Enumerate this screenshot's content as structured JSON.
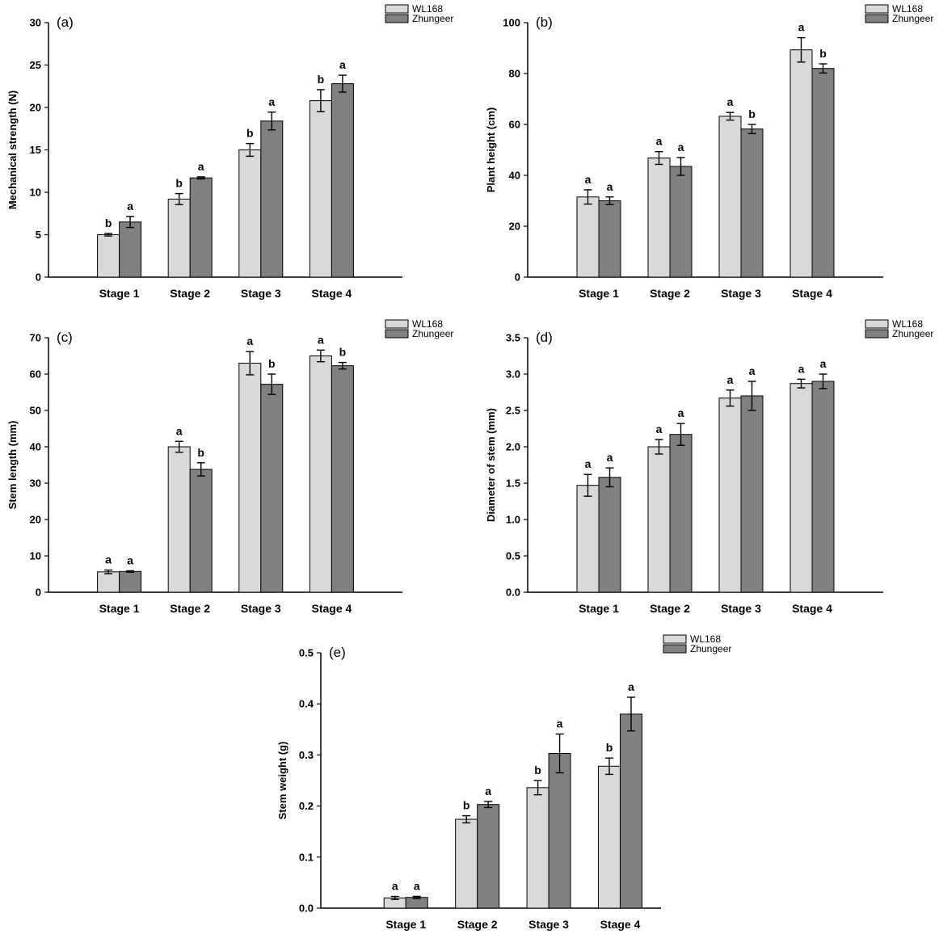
{
  "colors": {
    "wl168": "#d9d9d9",
    "zhungeer": "#808080",
    "axis": "#000000"
  },
  "chart_data": [
    {
      "id": "a",
      "panel_label": "(a)",
      "type": "bar",
      "ylabel": "Mechanical strength (N)",
      "categories": [
        "Stage 1",
        "Stage 2",
        "Stage 3",
        "Stage 4"
      ],
      "ylim": [
        0,
        30
      ],
      "yticks": [
        "0",
        "5",
        "10",
        "15",
        "20",
        "25",
        "30"
      ],
      "series": [
        {
          "name": "WL168",
          "values": [
            5.0,
            9.2,
            15.0,
            20.8
          ],
          "errors": [
            0.15,
            0.65,
            0.75,
            1.3
          ],
          "letters": [
            "b",
            "b",
            "b",
            "b"
          ]
        },
        {
          "name": "Zhungeer",
          "values": [
            6.5,
            11.7,
            18.4,
            22.8
          ],
          "errors": [
            0.65,
            0.12,
            1.05,
            1.0
          ],
          "letters": [
            "a",
            "a",
            "a",
            "a"
          ]
        }
      ]
    },
    {
      "id": "b",
      "panel_label": "(b)",
      "type": "bar",
      "ylabel": "Plant height (cm)",
      "categories": [
        "Stage 1",
        "Stage 2",
        "Stage 3",
        "Stage 4"
      ],
      "ylim": [
        0,
        100
      ],
      "yticks": [
        "0",
        "20",
        "40",
        "60",
        "80",
        "100"
      ],
      "series": [
        {
          "name": "WL168",
          "values": [
            31.5,
            46.8,
            63.2,
            89.3
          ],
          "errors": [
            2.8,
            2.5,
            1.5,
            4.8
          ],
          "letters": [
            "a",
            "a",
            "a",
            "a"
          ]
        },
        {
          "name": "Zhungeer",
          "values": [
            30.0,
            43.5,
            58.2,
            82.0
          ],
          "errors": [
            1.5,
            3.5,
            1.8,
            1.8
          ],
          "letters": [
            "a",
            "a",
            "b",
            "b"
          ]
        }
      ]
    },
    {
      "id": "c",
      "panel_label": "(c)",
      "type": "bar",
      "ylabel": "Stem length (mm)",
      "categories": [
        "Stage 1",
        "Stage 2",
        "Stage 3",
        "Stage 4"
      ],
      "ylim": [
        0,
        70
      ],
      "yticks": [
        "0",
        "10",
        "20",
        "30",
        "40",
        "50",
        "60",
        "70"
      ],
      "series": [
        {
          "name": "WL168",
          "values": [
            5.6,
            40.0,
            63.0,
            65.0
          ],
          "errors": [
            0.5,
            1.5,
            3.2,
            1.6
          ],
          "letters": [
            "a",
            "a",
            "a",
            "a"
          ]
        },
        {
          "name": "Zhungeer",
          "values": [
            5.7,
            33.8,
            57.2,
            62.3
          ],
          "errors": [
            0.2,
            1.8,
            2.8,
            0.9
          ],
          "letters": [
            "a",
            "b",
            "b",
            "b"
          ]
        }
      ]
    },
    {
      "id": "d",
      "panel_label": "(d)",
      "type": "bar",
      "ylabel": "Diameter of stem (mm)",
      "categories": [
        "Stage 1",
        "Stage 2",
        "Stage 3",
        "Stage 4"
      ],
      "ylim": [
        0,
        3.5
      ],
      "yticks": [
        "0.0",
        "0.5",
        "1.0",
        "1.5",
        "2.0",
        "2.5",
        "3.0",
        "3.5"
      ],
      "series": [
        {
          "name": "WL168",
          "values": [
            1.47,
            2.0,
            2.67,
            2.87
          ],
          "errors": [
            0.15,
            0.1,
            0.11,
            0.06
          ],
          "letters": [
            "a",
            "a",
            "a",
            "a"
          ]
        },
        {
          "name": "Zhungeer",
          "values": [
            1.58,
            2.17,
            2.7,
            2.9
          ],
          "errors": [
            0.13,
            0.15,
            0.2,
            0.1
          ],
          "letters": [
            "a",
            "a",
            "a",
            "a"
          ]
        }
      ]
    },
    {
      "id": "e",
      "panel_label": "(e)",
      "type": "bar",
      "ylabel": "Stem weight (g)",
      "categories": [
        "Stage 1",
        "Stage 2",
        "Stage 3",
        "Stage 4"
      ],
      "ylim": [
        0,
        0.5
      ],
      "yticks": [
        "0.0",
        "0.1",
        "0.2",
        "0.3",
        "0.4",
        "0.5"
      ],
      "series": [
        {
          "name": "WL168",
          "values": [
            0.02,
            0.174,
            0.236,
            0.278
          ],
          "errors": [
            0.003,
            0.007,
            0.014,
            0.016
          ],
          "letters": [
            "a",
            "b",
            "b",
            "b"
          ]
        },
        {
          "name": "Zhungeer",
          "values": [
            0.021,
            0.203,
            0.303,
            0.38
          ],
          "errors": [
            0.002,
            0.006,
            0.038,
            0.033
          ],
          "letters": [
            "a",
            "a",
            "a",
            "a"
          ]
        }
      ]
    }
  ]
}
